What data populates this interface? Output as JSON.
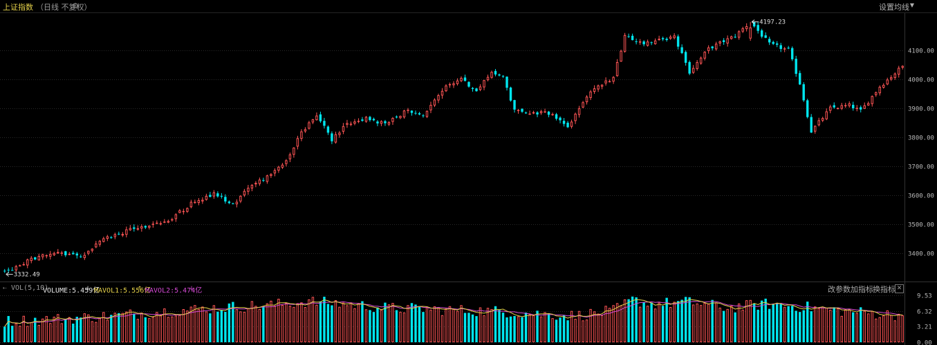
{
  "header": {
    "title": "上证指数",
    "subtitle": "（日线 不复权）",
    "gear_icon": "gear-icon",
    "ma_settings_label": "设置均线"
  },
  "volume_panel": {
    "indicator_name": "VOL(5,10)",
    "volume_label": "VOLUME:5.459亿",
    "mavol1_label": "MAVOL1:5.556亿",
    "mavol2_label": "MAVOL2:5.474亿",
    "change_params_label": "改参数",
    "add_indicator_label": "加指标",
    "switch_indicator_label": "换指标",
    "close_label": "✕",
    "colors": {
      "volume": "#e6e6e6",
      "mavol1": "#e6d24a",
      "mavol2": "#d64bd6"
    }
  },
  "colors": {
    "up": "#ff5555",
    "down": "#00e5ee",
    "grid": "#2a2a2a",
    "axis_text": "#b8b8b8",
    "ma5": "#e6d24a",
    "ma10": "#d64bd6"
  },
  "chart_data": [
    {
      "type": "candlestick",
      "title": "上证指数",
      "y_axis_side": "right",
      "yticks": [
        "3400.00",
        "3500.00",
        "3600.00",
        "3700.00",
        "3800.00",
        "3900.00",
        "4000.00",
        "4100.00"
      ],
      "ylim": [
        3310,
        4225
      ],
      "grid": true,
      "annotations": [
        {
          "text": "4197.23",
          "marks": "high",
          "value": 4197.23
        },
        {
          "text": "3332.49",
          "marks": "low",
          "value": 3332.49
        }
      ],
      "keypoints": [
        [
          0,
          3334
        ],
        [
          8,
          3385
        ],
        [
          14,
          3402
        ],
        [
          20,
          3385
        ],
        [
          25,
          3445
        ],
        [
          35,
          3490
        ],
        [
          42,
          3505
        ],
        [
          50,
          3580
        ],
        [
          55,
          3605
        ],
        [
          60,
          3565
        ],
        [
          65,
          3640
        ],
        [
          70,
          3668
        ],
        [
          74,
          3720
        ],
        [
          78,
          3820
        ],
        [
          82,
          3875
        ],
        [
          86,
          3790
        ],
        [
          90,
          3850
        ],
        [
          95,
          3865
        ],
        [
          100,
          3845
        ],
        [
          106,
          3895
        ],
        [
          110,
          3870
        ],
        [
          116,
          3975
        ],
        [
          120,
          4000
        ],
        [
          124,
          3960
        ],
        [
          128,
          4020
        ],
        [
          131,
          4010
        ],
        [
          134,
          3890
        ],
        [
          139,
          3885
        ],
        [
          144,
          3880
        ],
        [
          148,
          3835
        ],
        [
          154,
          3960
        ],
        [
          160,
          4005
        ],
        [
          163,
          4145
        ],
        [
          168,
          4125
        ],
        [
          176,
          4145
        ],
        [
          180,
          4025
        ],
        [
          185,
          4105
        ],
        [
          192,
          4150
        ],
        [
          196,
          4197
        ],
        [
          201,
          4120
        ],
        [
          206,
          4100
        ],
        [
          209,
          3985
        ],
        [
          212,
          3820
        ],
        [
          217,
          3900
        ],
        [
          222,
          3910
        ],
        [
          225,
          3890
        ],
        [
          230,
          3975
        ],
        [
          236,
          4045
        ]
      ],
      "candle_count": 237
    },
    {
      "type": "bar",
      "title": "VOL(5,10)",
      "y_axis_side": "right",
      "yticks": [
        "9.53",
        "6.32",
        "3.21",
        "0.00"
      ],
      "ylim": [
        0,
        9.53
      ],
      "unit": "亿",
      "series": [
        {
          "name": "VOLUME",
          "last": 5.459
        },
        {
          "name": "MAVOL1",
          "last": 5.556
        },
        {
          "name": "MAVOL2",
          "last": 5.474
        }
      ],
      "keypoints": [
        [
          0,
          4.3
        ],
        [
          10,
          4.6
        ],
        [
          20,
          5.0
        ],
        [
          30,
          5.5
        ],
        [
          40,
          6.2
        ],
        [
          50,
          6.7
        ],
        [
          60,
          7.2
        ],
        [
          70,
          7.6
        ],
        [
          80,
          8.3
        ],
        [
          90,
          7.8
        ],
        [
          100,
          7.0
        ],
        [
          110,
          6.8
        ],
        [
          120,
          6.5
        ],
        [
          130,
          6.3
        ],
        [
          140,
          5.8
        ],
        [
          150,
          5.4
        ],
        [
          160,
          6.4
        ],
        [
          165,
          8.6
        ],
        [
          170,
          7.8
        ],
        [
          180,
          8.2
        ],
        [
          190,
          7.0
        ],
        [
          200,
          7.8
        ],
        [
          210,
          7.2
        ],
        [
          220,
          6.4
        ],
        [
          236,
          5.46
        ]
      ]
    }
  ]
}
